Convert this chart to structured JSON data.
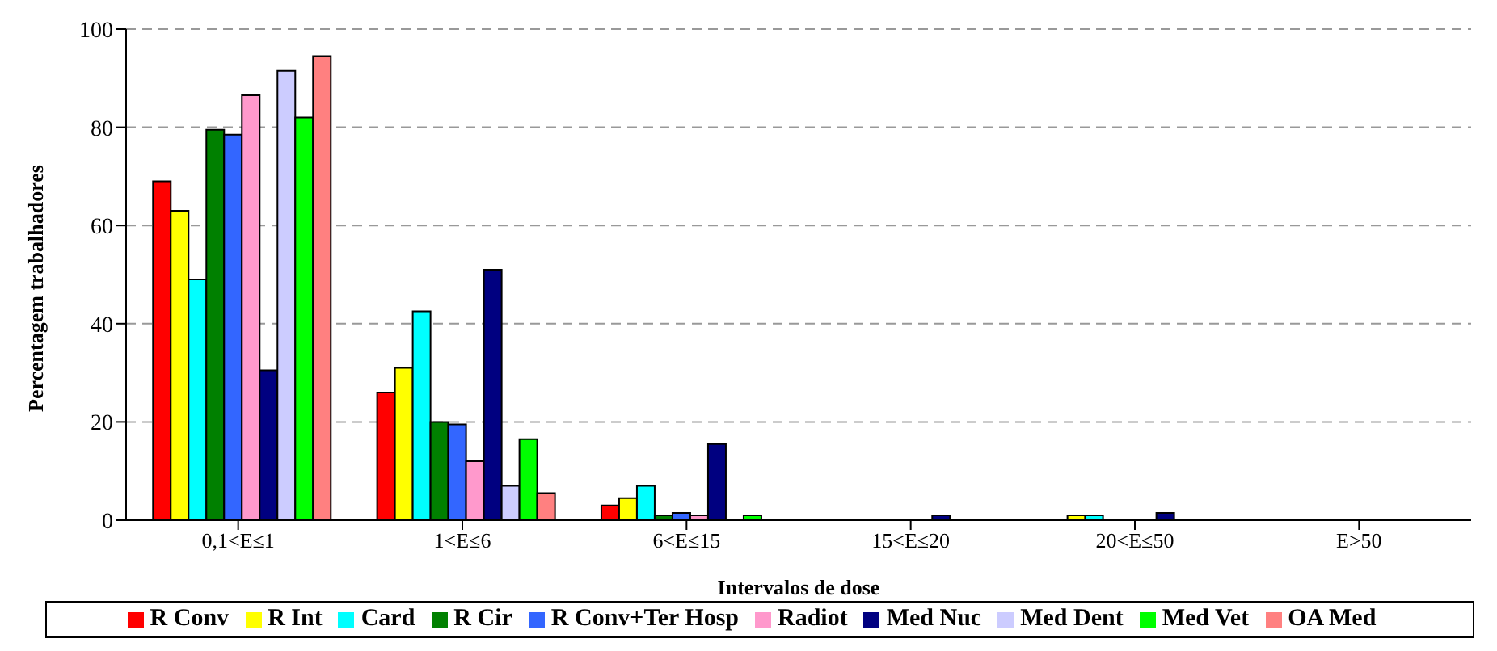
{
  "chart_data": {
    "type": "bar",
    "xlabel": "Intervalos de dose",
    "ylabel": "Percentagem trabalhadores",
    "categories": [
      "0,1<E≤1",
      "1<E≤6",
      "6<E≤15",
      "15<E≤20",
      "20<E≤50",
      "E>50"
    ],
    "series": [
      {
        "name": "R Conv",
        "color": "#ff0000",
        "values": [
          69,
          26,
          3,
          null,
          null,
          0
        ]
      },
      {
        "name": "R Int",
        "color": "#ffff00",
        "values": [
          63,
          31,
          4.5,
          null,
          1,
          0
        ]
      },
      {
        "name": "Card",
        "color": "#00ffff",
        "values": [
          49,
          42.5,
          7,
          0,
          1,
          0
        ]
      },
      {
        "name": "R Cir",
        "color": "#008000",
        "values": [
          79.5,
          20,
          1,
          0,
          0,
          0
        ]
      },
      {
        "name": "R Conv+Ter Hosp",
        "color": "#3366ff",
        "values": [
          78.5,
          19.5,
          1.5,
          0,
          0,
          0
        ]
      },
      {
        "name": "Radiot",
        "color": "#ff99cc",
        "values": [
          86.5,
          12,
          1,
          0,
          0,
          0
        ]
      },
      {
        "name": "Med Nuc",
        "color": "#000080",
        "values": [
          30.5,
          51,
          15.5,
          1,
          1.5,
          0
        ]
      },
      {
        "name": "Med Dent",
        "color": "#ccccff",
        "values": [
          91.5,
          7,
          null,
          0,
          null,
          0
        ]
      },
      {
        "name": "Med Vet",
        "color": "#00ff00",
        "values": [
          82,
          16.5,
          1,
          0,
          0,
          0
        ]
      },
      {
        "name": "OA Med",
        "color": "#ff8080",
        "values": [
          94.5,
          5.5,
          0,
          0,
          0,
          0
        ]
      }
    ],
    "ylim": [
      0,
      100
    ],
    "yticks": [
      0,
      20,
      40,
      60,
      80,
      100
    ],
    "grid": "y",
    "legend": "bottom"
  }
}
